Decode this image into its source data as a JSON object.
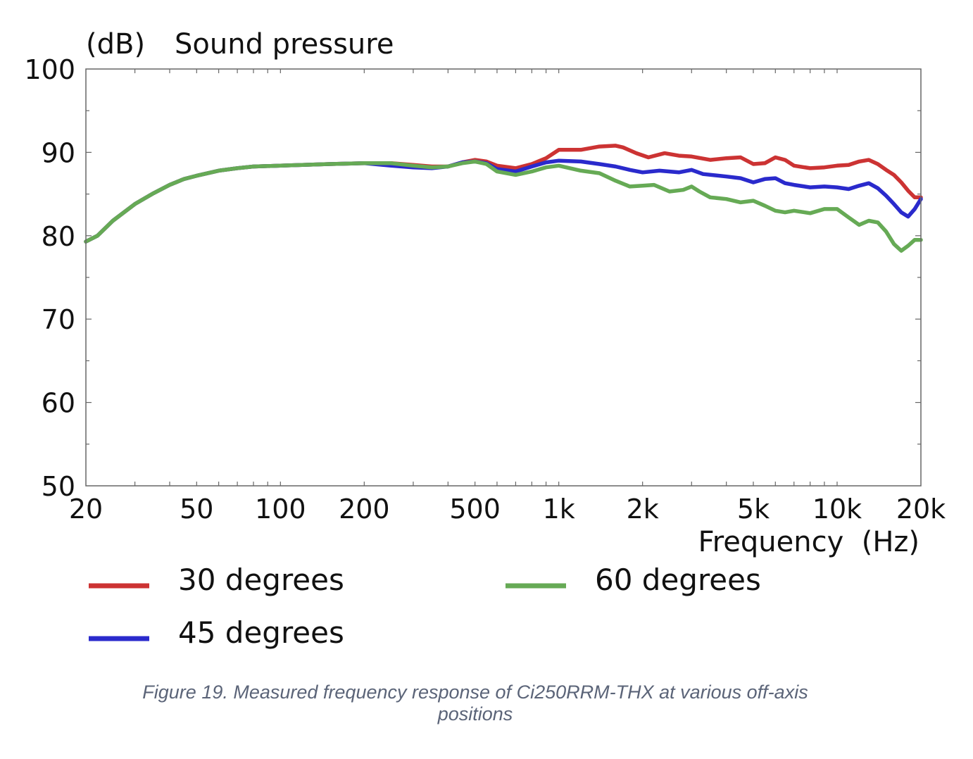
{
  "chart_data": {
    "type": "line",
    "title": "Sound pressure",
    "ylabel": "(dB)",
    "xlabel": "Frequency  (Hz)",
    "xscale": "log",
    "xlim": [
      20,
      20000
    ],
    "ylim": [
      50,
      100
    ],
    "yticks": [
      {
        "value": 100,
        "label": "100"
      },
      {
        "value": 90,
        "label": "90"
      },
      {
        "value": 80,
        "label": "80"
      },
      {
        "value": 70,
        "label": "70"
      },
      {
        "value": 60,
        "label": "60"
      },
      {
        "value": 50,
        "label": "50"
      }
    ],
    "xticks": [
      {
        "value": 20,
        "label": "20"
      },
      {
        "value": 50,
        "label": "50"
      },
      {
        "value": 100,
        "label": "100"
      },
      {
        "value": 200,
        "label": "200"
      },
      {
        "value": 500,
        "label": "500"
      },
      {
        "value": 1000,
        "label": "1k"
      },
      {
        "value": 2000,
        "label": "2k"
      },
      {
        "value": 5000,
        "label": "5k"
      },
      {
        "value": 10000,
        "label": "10k"
      },
      {
        "value": 20000,
        "label": "20k"
      }
    ],
    "series": [
      {
        "name": "30 degrees",
        "color": "#cc3333",
        "points": [
          [
            20,
            79.3
          ],
          [
            22,
            80
          ],
          [
            25,
            81.8
          ],
          [
            30,
            83.8
          ],
          [
            35,
            85.1
          ],
          [
            40,
            86.1
          ],
          [
            45,
            86.8
          ],
          [
            50,
            87.2
          ],
          [
            60,
            87.8
          ],
          [
            70,
            88.1
          ],
          [
            80,
            88.3
          ],
          [
            100,
            88.4
          ],
          [
            150,
            88.6
          ],
          [
            200,
            88.7
          ],
          [
            250,
            88.7
          ],
          [
            300,
            88.5
          ],
          [
            350,
            88.3
          ],
          [
            400,
            88.3
          ],
          [
            450,
            88.8
          ],
          [
            500,
            89.1
          ],
          [
            550,
            88.9
          ],
          [
            600,
            88.4
          ],
          [
            700,
            88.1
          ],
          [
            800,
            88.6
          ],
          [
            900,
            89.3
          ],
          [
            1000,
            90.3
          ],
          [
            1200,
            90.3
          ],
          [
            1400,
            90.7
          ],
          [
            1600,
            90.8
          ],
          [
            1700,
            90.6
          ],
          [
            1900,
            89.9
          ],
          [
            2100,
            89.4
          ],
          [
            2400,
            89.9
          ],
          [
            2700,
            89.6
          ],
          [
            3000,
            89.5
          ],
          [
            3500,
            89.1
          ],
          [
            4000,
            89.3
          ],
          [
            4500,
            89.4
          ],
          [
            5000,
            88.6
          ],
          [
            5500,
            88.7
          ],
          [
            6000,
            89.4
          ],
          [
            6500,
            89.1
          ],
          [
            7000,
            88.4
          ],
          [
            8000,
            88.1
          ],
          [
            9000,
            88.2
          ],
          [
            10000,
            88.4
          ],
          [
            11000,
            88.5
          ],
          [
            12000,
            88.9
          ],
          [
            13000,
            89.1
          ],
          [
            14000,
            88.6
          ],
          [
            15000,
            87.9
          ],
          [
            16000,
            87.3
          ],
          [
            17000,
            86.4
          ],
          [
            18000,
            85.4
          ],
          [
            19000,
            84.6
          ],
          [
            20000,
            84.6
          ]
        ]
      },
      {
        "name": "45 degrees",
        "color": "#2a2acc",
        "points": [
          [
            20,
            79.3
          ],
          [
            22,
            80
          ],
          [
            25,
            81.8
          ],
          [
            30,
            83.8
          ],
          [
            35,
            85.1
          ],
          [
            40,
            86.1
          ],
          [
            45,
            86.8
          ],
          [
            50,
            87.2
          ],
          [
            60,
            87.8
          ],
          [
            70,
            88.1
          ],
          [
            80,
            88.3
          ],
          [
            100,
            88.4
          ],
          [
            150,
            88.6
          ],
          [
            200,
            88.7
          ],
          [
            250,
            88.4
          ],
          [
            300,
            88.2
          ],
          [
            350,
            88.1
          ],
          [
            400,
            88.3
          ],
          [
            450,
            88.8
          ],
          [
            500,
            88.9
          ],
          [
            550,
            88.7
          ],
          [
            600,
            88.0
          ],
          [
            700,
            87.7
          ],
          [
            800,
            88.3
          ],
          [
            900,
            88.8
          ],
          [
            1000,
            89.0
          ],
          [
            1200,
            88.9
          ],
          [
            1400,
            88.6
          ],
          [
            1600,
            88.3
          ],
          [
            1800,
            87.9
          ],
          [
            2000,
            87.6
          ],
          [
            2300,
            87.8
          ],
          [
            2700,
            87.6
          ],
          [
            3000,
            87.9
          ],
          [
            3300,
            87.4
          ],
          [
            4000,
            87.1
          ],
          [
            4500,
            86.9
          ],
          [
            5000,
            86.4
          ],
          [
            5500,
            86.8
          ],
          [
            6000,
            86.9
          ],
          [
            6500,
            86.3
          ],
          [
            7000,
            86.1
          ],
          [
            8000,
            85.8
          ],
          [
            9000,
            85.9
          ],
          [
            10000,
            85.8
          ],
          [
            11000,
            85.6
          ],
          [
            12000,
            86.0
          ],
          [
            13000,
            86.3
          ],
          [
            14000,
            85.7
          ],
          [
            15000,
            84.8
          ],
          [
            16000,
            83.8
          ],
          [
            17000,
            82.8
          ],
          [
            18000,
            82.3
          ],
          [
            19000,
            83.2
          ],
          [
            20000,
            84.4
          ]
        ]
      },
      {
        "name": "60 degrees",
        "color": "#66aa55",
        "points": [
          [
            20,
            79.3
          ],
          [
            22,
            80
          ],
          [
            25,
            81.8
          ],
          [
            30,
            83.8
          ],
          [
            35,
            85.1
          ],
          [
            40,
            86.1
          ],
          [
            45,
            86.8
          ],
          [
            50,
            87.2
          ],
          [
            60,
            87.8
          ],
          [
            70,
            88.1
          ],
          [
            80,
            88.3
          ],
          [
            100,
            88.4
          ],
          [
            150,
            88.6
          ],
          [
            200,
            88.7
          ],
          [
            250,
            88.7
          ],
          [
            300,
            88.4
          ],
          [
            350,
            88.2
          ],
          [
            400,
            88.3
          ],
          [
            450,
            88.7
          ],
          [
            500,
            88.9
          ],
          [
            550,
            88.6
          ],
          [
            600,
            87.7
          ],
          [
            700,
            87.3
          ],
          [
            800,
            87.7
          ],
          [
            900,
            88.2
          ],
          [
            1000,
            88.4
          ],
          [
            1200,
            87.8
          ],
          [
            1400,
            87.5
          ],
          [
            1600,
            86.6
          ],
          [
            1800,
            85.9
          ],
          [
            2000,
            86.0
          ],
          [
            2200,
            86.1
          ],
          [
            2500,
            85.3
          ],
          [
            2800,
            85.5
          ],
          [
            3000,
            85.9
          ],
          [
            3200,
            85.3
          ],
          [
            3500,
            84.6
          ],
          [
            4000,
            84.4
          ],
          [
            4500,
            84.0
          ],
          [
            5000,
            84.2
          ],
          [
            5500,
            83.6
          ],
          [
            6000,
            83.0
          ],
          [
            6500,
            82.8
          ],
          [
            7000,
            83.0
          ],
          [
            8000,
            82.7
          ],
          [
            9000,
            83.2
          ],
          [
            10000,
            83.2
          ],
          [
            11000,
            82.2
          ],
          [
            12000,
            81.3
          ],
          [
            13000,
            81.8
          ],
          [
            14000,
            81.6
          ],
          [
            15000,
            80.5
          ],
          [
            16000,
            79.0
          ],
          [
            17000,
            78.2
          ],
          [
            18000,
            78.8
          ],
          [
            19000,
            79.5
          ],
          [
            20000,
            79.5
          ]
        ]
      }
    ],
    "legend": [
      {
        "name": "30 degrees",
        "color": "#cc3333"
      },
      {
        "name": "60 degrees",
        "color": "#66aa55"
      },
      {
        "name": "45 degrees",
        "color": "#2a2acc"
      }
    ],
    "grid": false
  },
  "caption": {
    "line1": "Figure 19. Measured frequency response of Ci250RRM-THX at various off-axis",
    "line2": "positions"
  }
}
